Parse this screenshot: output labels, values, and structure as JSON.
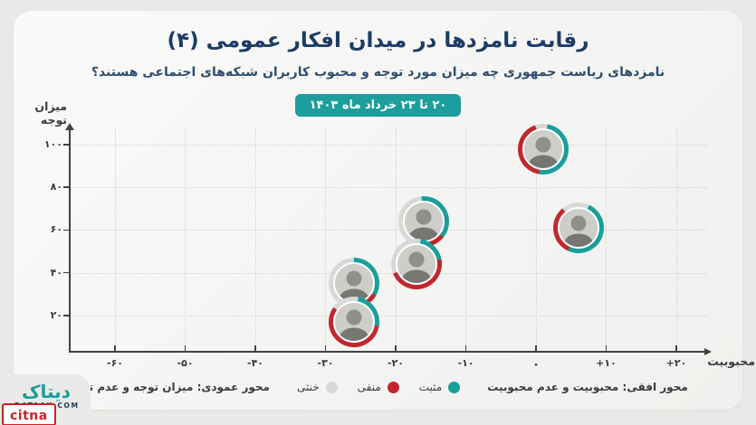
{
  "header": {
    "title": "رقابت نامزدها در میدان افکار عمومی (۴)",
    "subtitle": "نامزدهای ریاست جمهوری چه میزان مورد توجه و محبوب کاربران شبکه‌های اجتماعی هستند؟",
    "date_badge": "۲۰ تا ۲۳ خرداد ماه ۱۴۰۳"
  },
  "colors": {
    "positive": "#199e9c",
    "negative": "#c1272d",
    "neutral": "#d8d8d6",
    "badge": "#1b9e9c",
    "title_navy": "#1c3c64",
    "axis": "#424242"
  },
  "chart_data": {
    "type": "scatter",
    "xlabel": "محبوبیت",
    "ylabel": "میزان توجه",
    "xlim": [
      -70,
      28
    ],
    "ylim": [
      0,
      112
    ],
    "grid": "dotted",
    "x_ticks": [
      {
        "value": -60,
        "label": "-۶۰"
      },
      {
        "value": -50,
        "label": "-۵۰"
      },
      {
        "value": -40,
        "label": "-۴۰"
      },
      {
        "value": -30,
        "label": "-۳۰"
      },
      {
        "value": -20,
        "label": "-۲۰"
      },
      {
        "value": -10,
        "label": "-۱۰"
      },
      {
        "value": 0,
        "label": "۰"
      },
      {
        "value": 10,
        "label": "+۱۰"
      },
      {
        "value": 20,
        "label": "+۲۰"
      }
    ],
    "y_ticks": [
      {
        "value": 100,
        "label": "۱۰۰"
      },
      {
        "value": 80,
        "label": "۸۰"
      },
      {
        "value": 60,
        "label": "۶۰"
      },
      {
        "value": 40,
        "label": "۴۰"
      },
      {
        "value": 20,
        "label": "۲۰"
      }
    ],
    "points": [
      {
        "id": "candidate-1",
        "x": 1,
        "y": 98,
        "ring_start_deg": 10,
        "ring_pct": {
          "positive": 50,
          "negative": 42,
          "neutral": 8
        }
      },
      {
        "id": "candidate-2",
        "x": 6,
        "y": 61,
        "ring_start_deg": 25,
        "ring_pct": {
          "positive": 50,
          "negative": 32,
          "neutral": 18
        }
      },
      {
        "id": "candidate-3",
        "x": -16,
        "y": 64,
        "ring_start_deg": -5,
        "ring_pct": {
          "positive": 37,
          "negative": 11,
          "neutral": 52
        }
      },
      {
        "id": "candidate-4",
        "x": -17,
        "y": 44,
        "ring_start_deg": 10,
        "ring_pct": {
          "positive": 19,
          "negative": 47,
          "neutral": 34
        }
      },
      {
        "id": "candidate-5",
        "x": -26,
        "y": 35,
        "ring_start_deg": 0,
        "ring_pct": {
          "positive": 33,
          "negative": 12,
          "neutral": 55
        }
      },
      {
        "id": "candidate-6",
        "x": -26,
        "y": 17,
        "ring_start_deg": 10,
        "ring_pct": {
          "positive": 25,
          "negative": 57,
          "neutral": 18
        }
      }
    ]
  },
  "legend": {
    "horizontal_axis_note": "محور افقی: محبوبیت و عدم محبوبیت",
    "vertical_axis_note": "محور عمودی: میزان توجه و عدم توجه",
    "items": [
      {
        "label": "مثبت",
        "color": "#199e9c"
      },
      {
        "label": "منفی",
        "color": "#c1272d"
      },
      {
        "label": "خنثی",
        "color": "#d8d8d6"
      }
    ]
  },
  "footer": {
    "brand_fa": "دیتاک",
    "brand_domain": "DATAAK.COM",
    "partner_logo": "citna"
  }
}
